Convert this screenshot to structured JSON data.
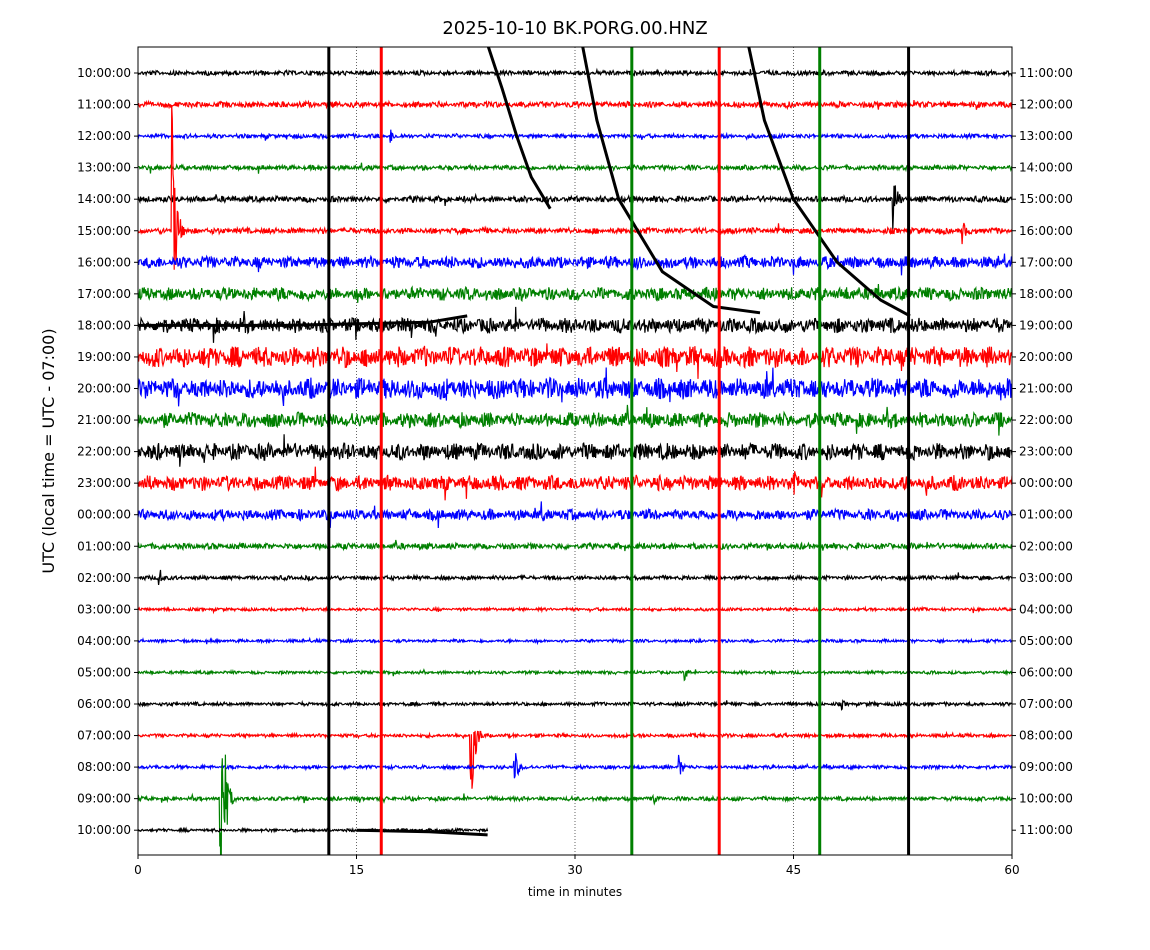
{
  "chart_data": {
    "type": "line",
    "title": "2025-10-10 BK.PORG.00.HNZ",
    "xlabel": "time in minutes",
    "ylabel": "UTC (local time = UTC - 07:00)",
    "xlim": [
      0,
      60
    ],
    "xticks": [
      "0",
      "15",
      "30",
      "45",
      "60"
    ],
    "xtick_values": [
      0,
      15,
      30,
      45,
      60
    ],
    "grid": "vertical dotted at 15, 30, 45",
    "series_colors": [
      "#000000",
      "#ff0000",
      "#0000ff",
      "#008000"
    ],
    "left_labels": [
      "10:00:00",
      "11:00:00",
      "12:00:00",
      "13:00:00",
      "14:00:00",
      "15:00:00",
      "16:00:00",
      "17:00:00",
      "18:00:00",
      "19:00:00",
      "20:00:00",
      "21:00:00",
      "22:00:00",
      "23:00:00",
      "00:00:00",
      "01:00:00",
      "02:00:00",
      "03:00:00",
      "04:00:00",
      "05:00:00",
      "06:00:00",
      "07:00:00",
      "08:00:00",
      "09:00:00",
      "10:00:00"
    ],
    "right_labels": [
      "11:00:00",
      "12:00:00",
      "13:00:00",
      "14:00:00",
      "15:00:00",
      "16:00:00",
      "17:00:00",
      "18:00:00",
      "19:00:00",
      "20:00:00",
      "21:00:00",
      "22:00:00",
      "23:00:00",
      "00:00:00",
      "01:00:00",
      "02:00:00",
      "03:00:00",
      "04:00:00",
      "05:00:00",
      "06:00:00",
      "07:00:00",
      "08:00:00",
      "09:00:00",
      "10:00:00",
      "11:00:00"
    ],
    "row_noise": [
      0.08,
      0.1,
      0.07,
      0.08,
      0.1,
      0.1,
      0.2,
      0.22,
      0.25,
      0.35,
      0.35,
      0.25,
      0.28,
      0.25,
      0.18,
      0.1,
      0.07,
      0.05,
      0.05,
      0.05,
      0.06,
      0.06,
      0.06,
      0.07,
      0.05
    ],
    "last_row_end_minute": 24,
    "full_height_spikes": [
      {
        "minute": 13.1,
        "color": "#000000"
      },
      {
        "minute": 16.7,
        "color": "#ff0000"
      },
      {
        "minute": 33.9,
        "color": "#008000"
      },
      {
        "minute": 39.9,
        "color": "#ff0000"
      },
      {
        "minute": 46.8,
        "color": "#008000"
      },
      {
        "minute": 52.9,
        "color": "#000000"
      }
    ],
    "events": [
      {
        "row": 5,
        "minute": 2.3,
        "amp": 4.5
      },
      {
        "row": 23,
        "minute": 5.6,
        "amp": 7
      },
      {
        "row": 21,
        "minute": 22.8,
        "amp": 3
      },
      {
        "row": 22,
        "minute": 25.8,
        "amp": 0.8
      },
      {
        "row": 16,
        "minute": 1.4,
        "amp": 0.5
      },
      {
        "row": 2,
        "minute": 17.3,
        "amp": 0.3
      },
      {
        "row": 5,
        "minute": 56.5,
        "amp": 0.6
      },
      {
        "row": 4,
        "minute": 51.8,
        "amp": 1.3
      },
      {
        "row": 13,
        "minute": 45,
        "amp": 0.8
      },
      {
        "row": 19,
        "minute": 37.5,
        "amp": 0.3
      },
      {
        "row": 22,
        "minute": 37.1,
        "amp": 0.5
      },
      {
        "row": 20,
        "minute": 48.3,
        "amp": 0.2
      },
      {
        "row": 23,
        "minute": 35.3,
        "amp": 0.3
      }
    ],
    "drift_curves": [
      {
        "minutes": [
          24.0,
          25.0,
          26.0,
          27.0,
          28.3
        ],
        "rows": [
          -0.9,
          0.5,
          2.0,
          3.3,
          4.3
        ]
      },
      {
        "minutes": [
          30.5,
          31.5,
          33.0,
          36.0,
          39.5,
          42.7
        ],
        "rows": [
          -0.9,
          1.5,
          4.0,
          6.3,
          7.4,
          7.6
        ]
      },
      {
        "minutes": [
          41.9,
          43.0,
          45.0,
          48.0,
          51.0,
          53.0
        ],
        "rows": [
          -0.9,
          1.5,
          4.0,
          6.0,
          7.2,
          7.7
        ]
      },
      {
        "minutes": [
          0,
          10,
          20,
          22.6
        ],
        "rows": [
          8.0,
          8.0,
          7.9,
          7.7
        ]
      },
      {
        "minutes": [
          15,
          20,
          24
        ],
        "rows": [
          24.0,
          24.05,
          24.15
        ]
      }
    ]
  }
}
